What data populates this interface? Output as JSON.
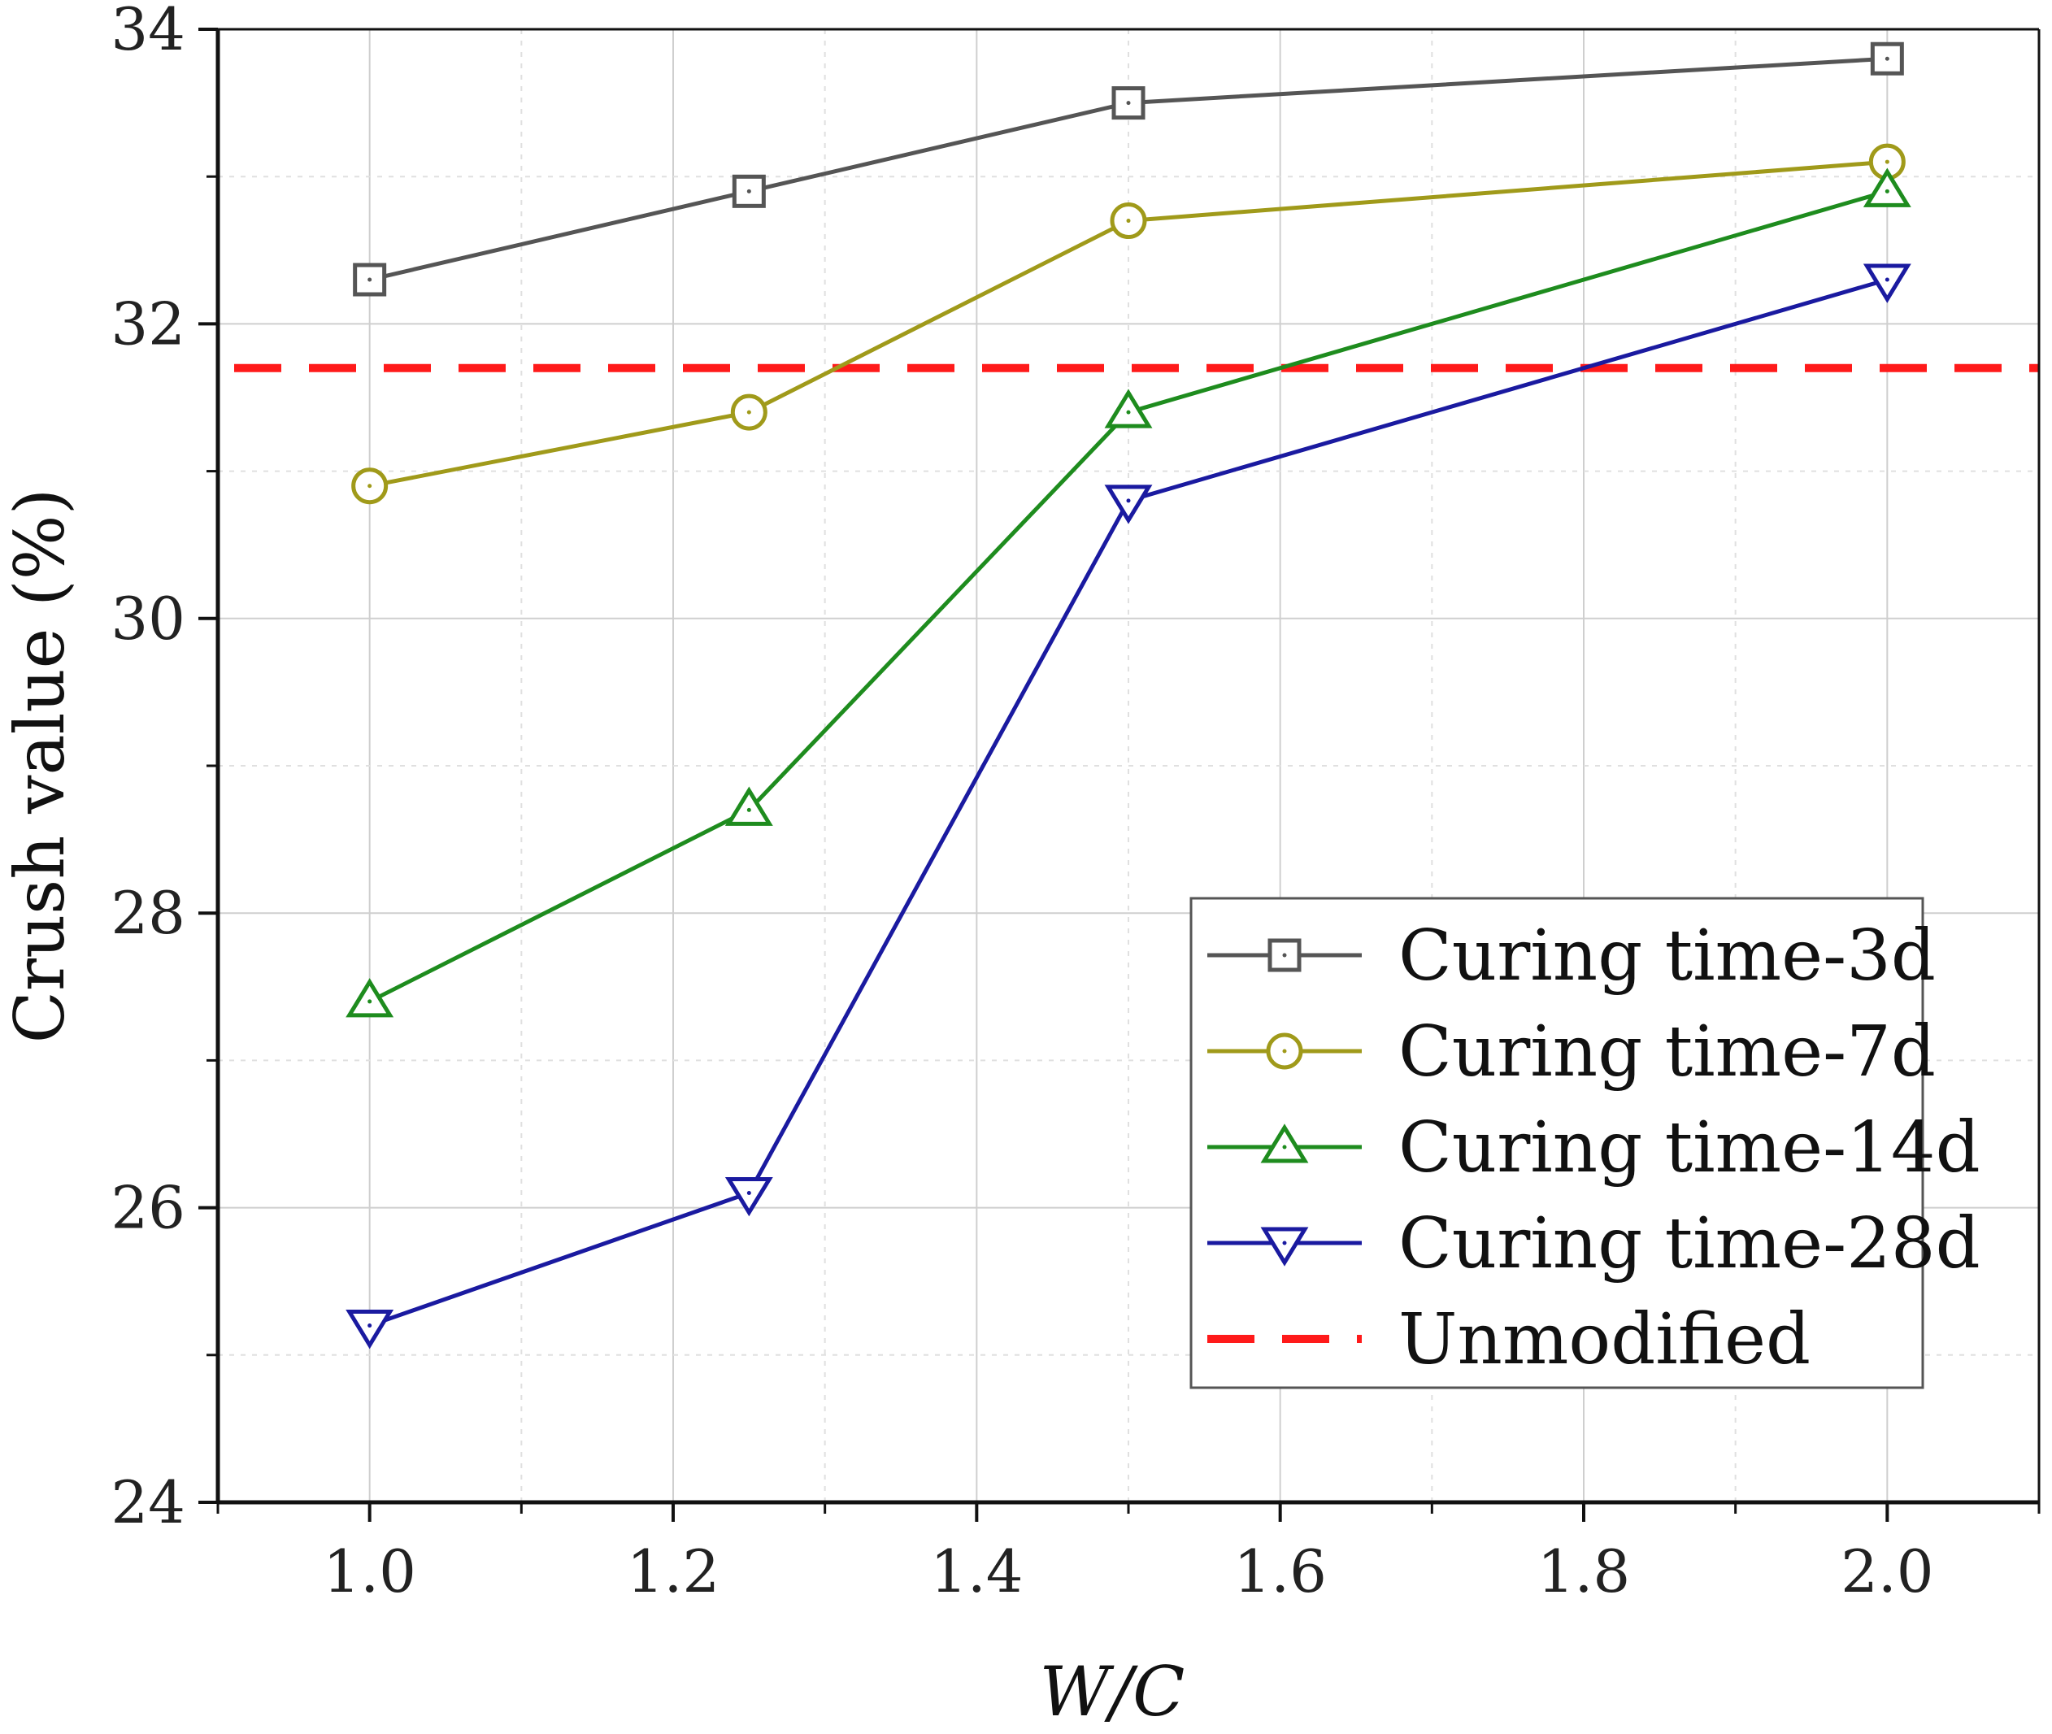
{
  "chart_data": {
    "type": "line",
    "xlabel": "W/C",
    "ylabel": "Crush value (%)",
    "xlim": [
      0.9,
      2.1
    ],
    "ylim": [
      24,
      34
    ],
    "x_ticks": [
      "1.0",
      "1.2",
      "1.4",
      "1.6",
      "1.8",
      "2.0"
    ],
    "y_ticks": [
      "24",
      "26",
      "28",
      "30",
      "32",
      "34"
    ],
    "grid": true,
    "legend_position": "bottom-right",
    "series": [
      {
        "name": "Curing time-3d",
        "marker": "square",
        "color": "#555555",
        "x": [
          1.0,
          1.25,
          1.5,
          2.0
        ],
        "y": [
          32.3,
          32.9,
          33.5,
          33.8
        ]
      },
      {
        "name": "Curing time-7d",
        "marker": "circle",
        "color": "#a09a1a",
        "x": [
          1.0,
          1.25,
          1.5,
          2.0
        ],
        "y": [
          30.9,
          31.4,
          32.7,
          33.1
        ]
      },
      {
        "name": "Curing time-14d",
        "marker": "triangle-up",
        "color": "#1e8c1e",
        "x": [
          1.0,
          1.25,
          1.5,
          2.0
        ],
        "y": [
          27.4,
          28.7,
          31.4,
          32.9
        ]
      },
      {
        "name": "Curing time-28d",
        "marker": "triangle-down",
        "color": "#1a1aa0",
        "x": [
          1.0,
          1.25,
          1.5,
          2.0
        ],
        "y": [
          25.2,
          26.1,
          30.8,
          32.3
        ]
      }
    ],
    "reference_lines": [
      {
        "name": "Unmodified",
        "y": 31.7,
        "color": "#ff1a1a",
        "style": "dashed"
      }
    ]
  }
}
